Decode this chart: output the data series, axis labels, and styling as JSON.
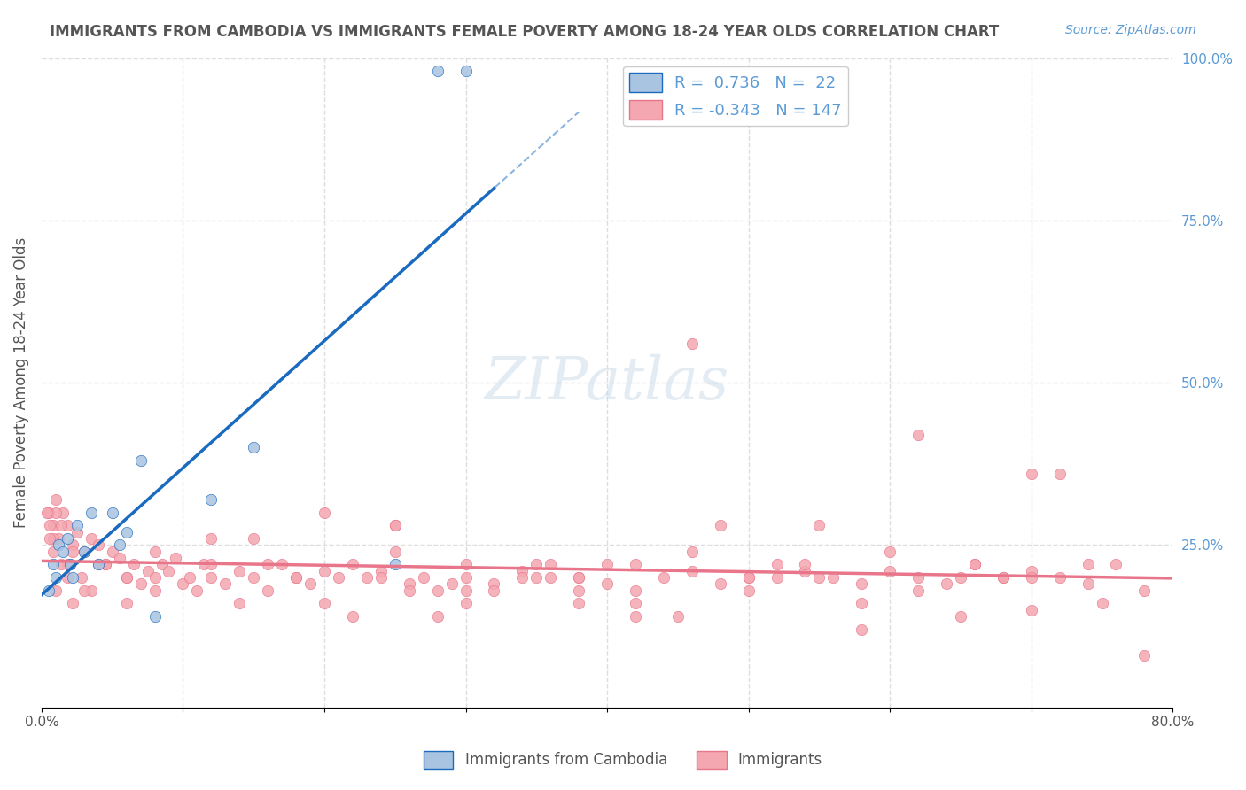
{
  "title": "IMMIGRANTS FROM CAMBODIA VS IMMIGRANTS FEMALE POVERTY AMONG 18-24 YEAR OLDS CORRELATION CHART",
  "source": "Source: ZipAtlas.com",
  "xlabel": "",
  "ylabel": "Female Poverty Among 18-24 Year Olds",
  "blue_label": "Immigrants from Cambodia",
  "pink_label": "Immigrants",
  "blue_R": 0.736,
  "blue_N": 22,
  "pink_R": -0.343,
  "pink_N": 147,
  "blue_color": "#a8c4e0",
  "pink_color": "#f4a7b0",
  "blue_line_color": "#1a6bbf",
  "pink_line_color": "#e8758a",
  "legend_text_color": "#5b9bd5",
  "title_color": "#555555",
  "axis_label_color": "#555555",
  "grid_color": "#dddddd",
  "background_color": "#ffffff",
  "right_tick_color": "#5b9bd5",
  "xlim": [
    0.0,
    0.8
  ],
  "ylim": [
    0.0,
    1.0
  ],
  "xticks": [
    0.0,
    0.1,
    0.2,
    0.3,
    0.4,
    0.5,
    0.6,
    0.7,
    0.8
  ],
  "xticklabels": [
    "0.0%",
    "",
    "",
    "",
    "",
    "",
    "",
    "",
    "80.0%"
  ],
  "yticks_left": [],
  "yticks_right": [
    0.0,
    0.25,
    0.5,
    0.75,
    1.0
  ],
  "yticklabels_right": [
    "",
    "25.0%",
    "50.0%",
    "75.0%",
    "100.0%"
  ],
  "blue_scatter_x": [
    0.005,
    0.008,
    0.01,
    0.012,
    0.015,
    0.018,
    0.02,
    0.022,
    0.025,
    0.03,
    0.035,
    0.04,
    0.05,
    0.055,
    0.06,
    0.07,
    0.08,
    0.12,
    0.15,
    0.25,
    0.28,
    0.3
  ],
  "blue_scatter_y": [
    0.18,
    0.22,
    0.2,
    0.25,
    0.24,
    0.26,
    0.22,
    0.2,
    0.28,
    0.24,
    0.3,
    0.22,
    0.3,
    0.25,
    0.27,
    0.38,
    0.14,
    0.32,
    0.4,
    0.22,
    0.98,
    0.98
  ],
  "pink_scatter_x": [
    0.005,
    0.008,
    0.01,
    0.012,
    0.015,
    0.018,
    0.02,
    0.022,
    0.025,
    0.03,
    0.035,
    0.04,
    0.045,
    0.05,
    0.055,
    0.06,
    0.065,
    0.07,
    0.075,
    0.08,
    0.085,
    0.09,
    0.095,
    0.1,
    0.105,
    0.11,
    0.115,
    0.12,
    0.13,
    0.14,
    0.15,
    0.16,
    0.17,
    0.18,
    0.19,
    0.2,
    0.21,
    0.22,
    0.23,
    0.24,
    0.25,
    0.26,
    0.27,
    0.28,
    0.29,
    0.3,
    0.32,
    0.34,
    0.36,
    0.38,
    0.4,
    0.42,
    0.44,
    0.46,
    0.48,
    0.5,
    0.52,
    0.54,
    0.56,
    0.58,
    0.6,
    0.62,
    0.64,
    0.66,
    0.68,
    0.7,
    0.72,
    0.74,
    0.76,
    0.78,
    0.62,
    0.7,
    0.46,
    0.55,
    0.65,
    0.72,
    0.68,
    0.74,
    0.7,
    0.78,
    0.48,
    0.52,
    0.58,
    0.42,
    0.38,
    0.35,
    0.3,
    0.25,
    0.2,
    0.15,
    0.12,
    0.08,
    0.06,
    0.045,
    0.035,
    0.028,
    0.022,
    0.018,
    0.014,
    0.01,
    0.008,
    0.006,
    0.4,
    0.35,
    0.3,
    0.25,
    0.38,
    0.42,
    0.36,
    0.32,
    0.28,
    0.24,
    0.2,
    0.16,
    0.12,
    0.08,
    0.06,
    0.04,
    0.03,
    0.022,
    0.018,
    0.014,
    0.01,
    0.008,
    0.006,
    0.004,
    0.55,
    0.6,
    0.65,
    0.5,
    0.45,
    0.75,
    0.7,
    0.66,
    0.62,
    0.58,
    0.54,
    0.5,
    0.46,
    0.42,
    0.38,
    0.34,
    0.3,
    0.26,
    0.22,
    0.18,
    0.14
  ],
  "pink_scatter_y": [
    0.3,
    0.28,
    0.32,
    0.26,
    0.3,
    0.28,
    0.22,
    0.25,
    0.27,
    0.24,
    0.26,
    0.25,
    0.22,
    0.24,
    0.23,
    0.2,
    0.22,
    0.19,
    0.21,
    0.2,
    0.22,
    0.21,
    0.23,
    0.19,
    0.2,
    0.18,
    0.22,
    0.2,
    0.19,
    0.21,
    0.2,
    0.18,
    0.22,
    0.2,
    0.19,
    0.21,
    0.2,
    0.22,
    0.2,
    0.21,
    0.28,
    0.19,
    0.2,
    0.18,
    0.19,
    0.2,
    0.19,
    0.21,
    0.2,
    0.18,
    0.19,
    0.22,
    0.2,
    0.21,
    0.19,
    0.2,
    0.22,
    0.21,
    0.2,
    0.19,
    0.21,
    0.2,
    0.19,
    0.22,
    0.2,
    0.21,
    0.2,
    0.19,
    0.22,
    0.18,
    0.42,
    0.36,
    0.56,
    0.2,
    0.14,
    0.36,
    0.2,
    0.22,
    0.15,
    0.08,
    0.28,
    0.2,
    0.12,
    0.14,
    0.2,
    0.22,
    0.16,
    0.28,
    0.3,
    0.26,
    0.22,
    0.18,
    0.16,
    0.22,
    0.18,
    0.2,
    0.24,
    0.22,
    0.28,
    0.3,
    0.26,
    0.28,
    0.22,
    0.2,
    0.18,
    0.24,
    0.2,
    0.16,
    0.22,
    0.18,
    0.14,
    0.2,
    0.16,
    0.22,
    0.26,
    0.24,
    0.2,
    0.22,
    0.18,
    0.16,
    0.2,
    0.22,
    0.18,
    0.24,
    0.26,
    0.3,
    0.28,
    0.24,
    0.2,
    0.18,
    0.14,
    0.16,
    0.2,
    0.22,
    0.18,
    0.16,
    0.22,
    0.2,
    0.24,
    0.18,
    0.16,
    0.2,
    0.22,
    0.18,
    0.14,
    0.2,
    0.16
  ]
}
